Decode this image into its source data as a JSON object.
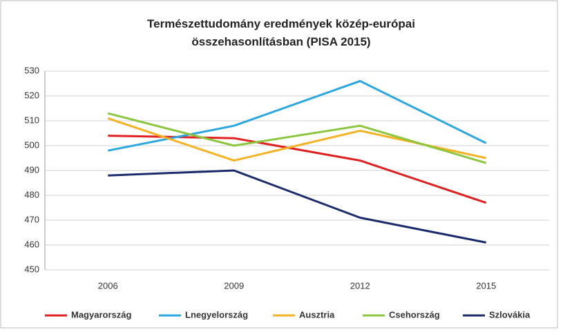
{
  "chart_data": {
    "type": "line",
    "title": "Természettudomány eredmények közép-európai összehasonlításban (PISA 2015)",
    "categories": [
      "2006",
      "2009",
      "2012",
      "2015"
    ],
    "series": [
      {
        "name": "Magyarország",
        "color": "#e02020",
        "values": [
          504,
          503,
          494,
          477
        ]
      },
      {
        "name": "Lnegyelország",
        "color": "#2aa7e0",
        "values": [
          498,
          508,
          526,
          501
        ]
      },
      {
        "name": "Ausztria",
        "color": "#f5b324",
        "values": [
          511,
          494,
          506,
          495
        ]
      },
      {
        "name": "Csehország",
        "color": "#8cc63f",
        "values": [
          513,
          500,
          508,
          493
        ]
      },
      {
        "name": "Szlovákia",
        "color": "#1a2a6c",
        "values": [
          488,
          490,
          471,
          461
        ]
      }
    ],
    "ylim": [
      450,
      530
    ],
    "yticks": [
      450,
      460,
      470,
      480,
      490,
      500,
      510,
      520,
      530
    ],
    "grid": true,
    "legend": "bottom"
  }
}
